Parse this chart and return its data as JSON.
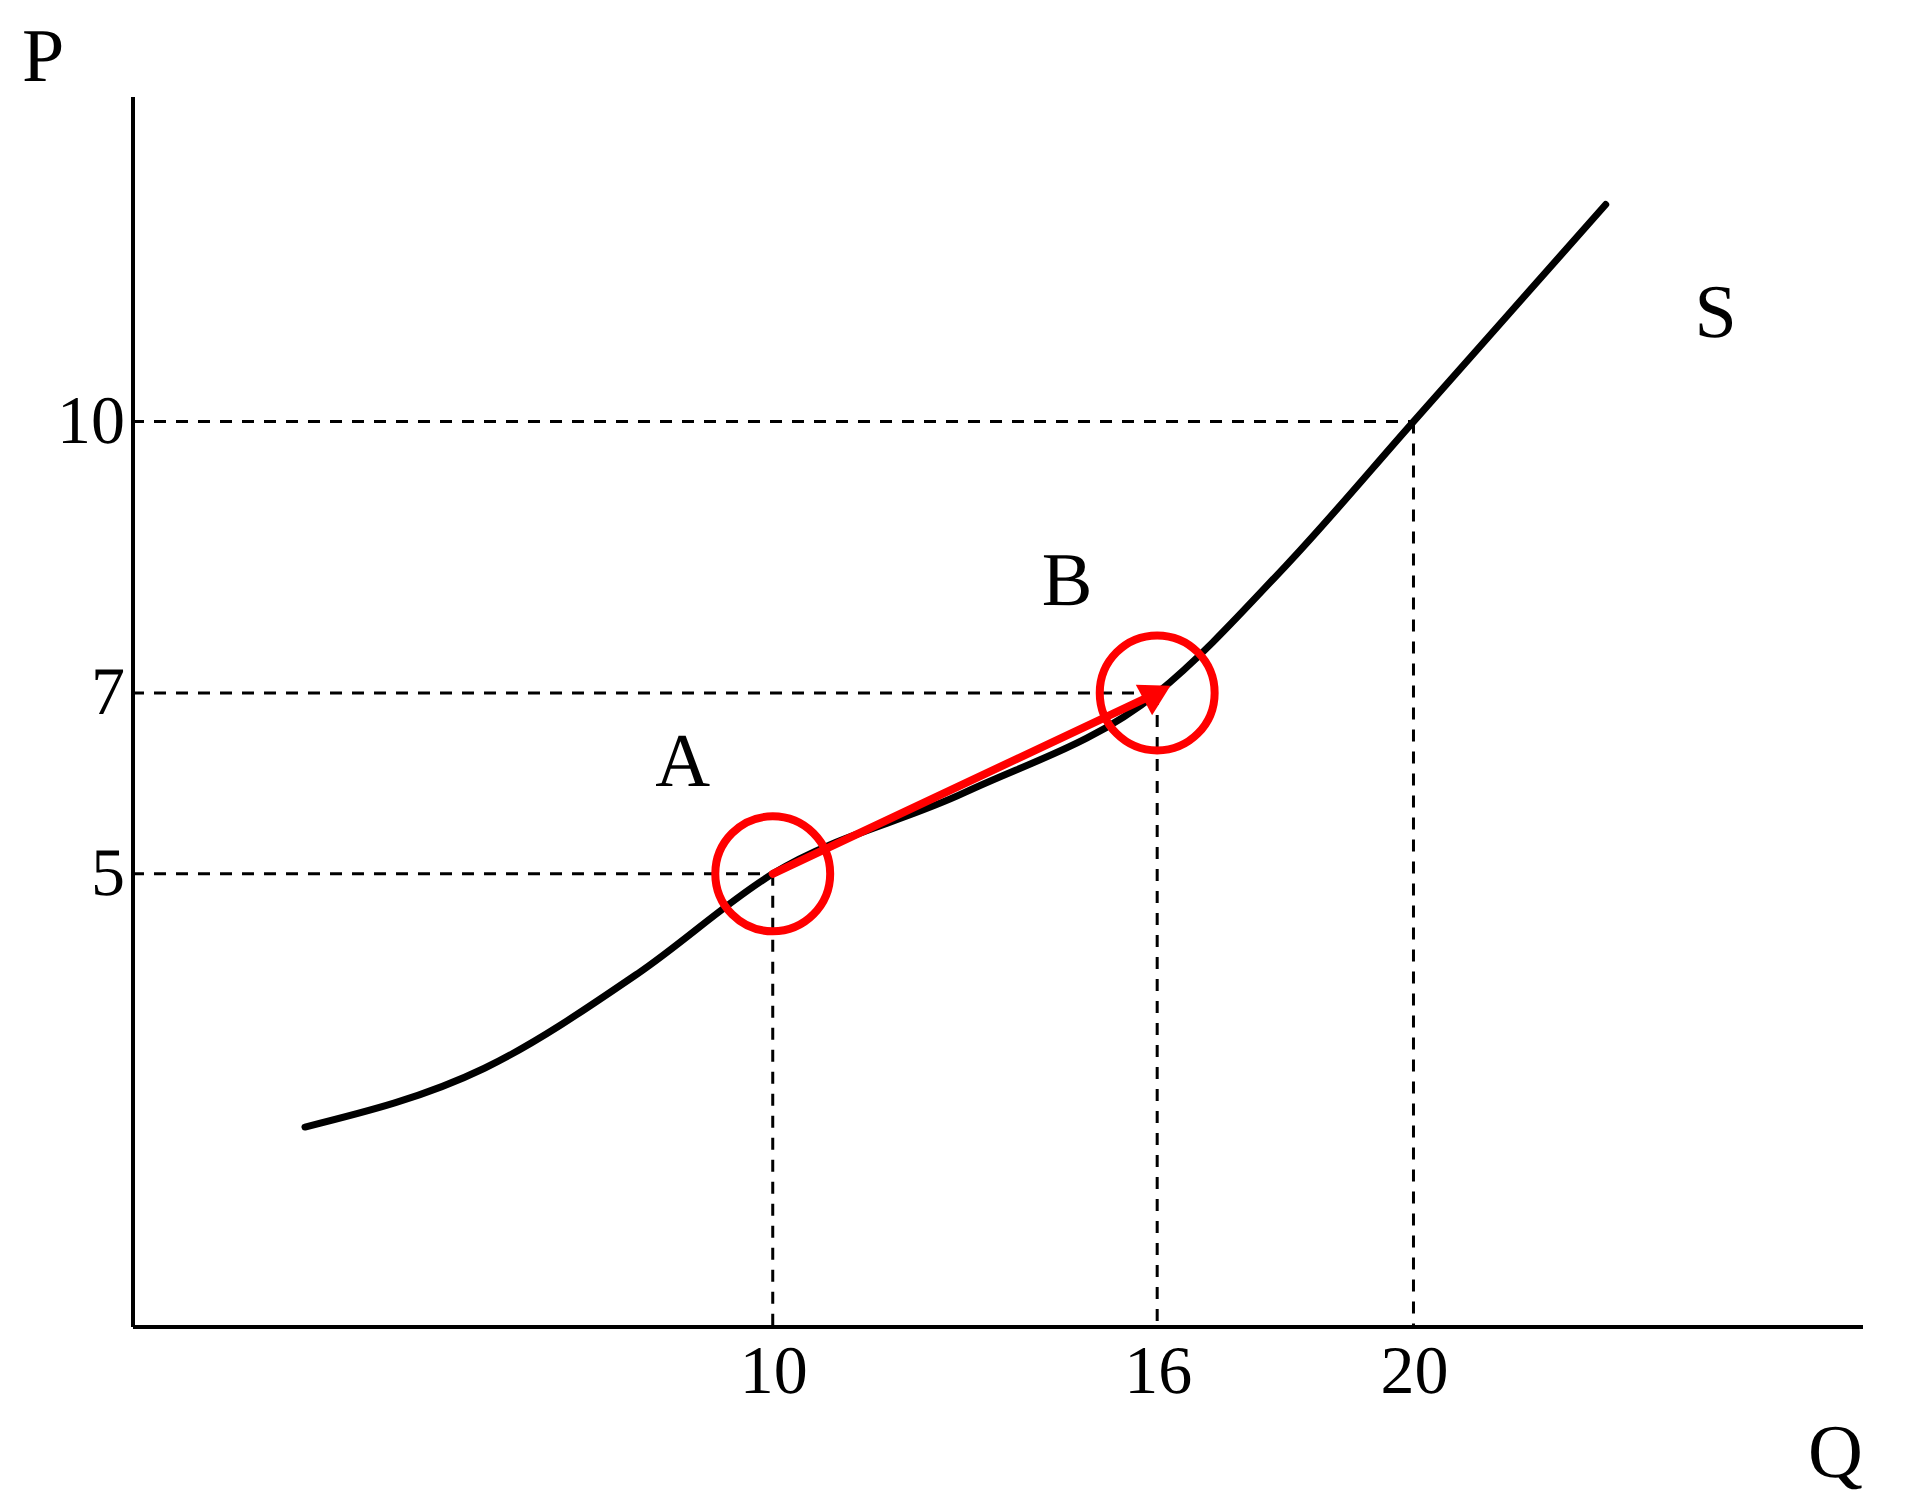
{
  "chart_data": {
    "type": "line",
    "xlabel": "Q",
    "ylabel": "P",
    "xlim": [
      0,
      27
    ],
    "ylim": [
      0,
      13.6
    ],
    "xticks": [
      10,
      16,
      20
    ],
    "yticks": [
      5,
      7,
      10
    ],
    "grid": true,
    "series": [
      {
        "color": "#000000",
        "x": [
          2.7,
          5.5,
          7.9,
          10,
          13,
          16,
          18,
          20,
          23
        ],
        "values": [
          2.2,
          2.85,
          3.9,
          5,
          5.9,
          7,
          8.4,
          10,
          12.4
        ]
      },
      {
        "type": "line",
        "color": "#ff0000",
        "marker": "triangle",
        "x": [
          10,
          16
        ],
        "values": [
          5,
          7
        ]
      },
      {
        "type": "scatter",
        "color": "#ff0000",
        "marker": "circle",
        "x": [
          10,
          16
        ],
        "values": [
          5,
          7
        ]
      }
    ],
    "annotations": [
      {
        "text": "A",
        "x": 10,
        "y": 5
      },
      {
        "text": "B",
        "x": 16,
        "y": 7
      },
      {
        "text": "S",
        "x": 23,
        "y": 12.4
      }
    ]
  }
}
